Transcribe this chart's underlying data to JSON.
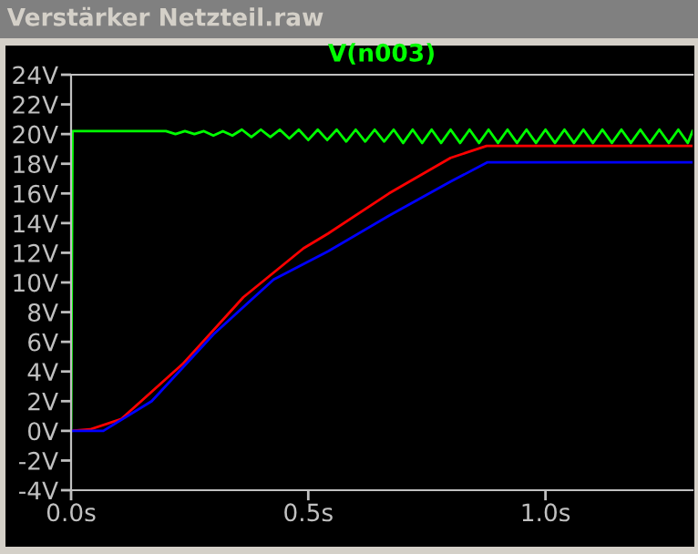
{
  "chart_data": {
    "type": "line",
    "title": "Verstärker Netzteil.raw",
    "xlim": [
      0,
      1.31
    ],
    "ylim": [
      -4,
      24
    ],
    "xticks": [
      {
        "value": 0,
        "label": "0.0s"
      },
      {
        "value": 0.5,
        "label": "0.5s"
      },
      {
        "value": 1.0,
        "label": "1.0s"
      }
    ],
    "yticks": [
      {
        "value": -4,
        "label": "-4V"
      },
      {
        "value": -2,
        "label": "-2V"
      },
      {
        "value": 0,
        "label": "0V"
      },
      {
        "value": 2,
        "label": "2V"
      },
      {
        "value": 4,
        "label": "4V"
      },
      {
        "value": 6,
        "label": "6V"
      },
      {
        "value": 8,
        "label": "8V"
      },
      {
        "value": 10,
        "label": "10V"
      },
      {
        "value": 12,
        "label": "12V"
      },
      {
        "value": 14,
        "label": "14V"
      },
      {
        "value": 16,
        "label": "16V"
      },
      {
        "value": 18,
        "label": "18V"
      },
      {
        "value": 20,
        "label": "20V"
      },
      {
        "value": 22,
        "label": "22V"
      },
      {
        "value": 24,
        "label": "24V"
      }
    ],
    "legend": "top",
    "grid": false,
    "series": [
      {
        "name": "V(n003)",
        "color": "#00ff00",
        "x": [
          0,
          0.003,
          0.2,
          0.22,
          0.24,
          0.26,
          0.28,
          0.3,
          0.32,
          0.34,
          0.36,
          0.38,
          0.4,
          0.42,
          0.44,
          0.46,
          0.48,
          0.5,
          0.52,
          0.54,
          0.56,
          0.58,
          0.6,
          0.62,
          0.64,
          0.66,
          0.68,
          0.7,
          0.72,
          0.74,
          0.76,
          0.78,
          0.8,
          0.82,
          0.84,
          0.86,
          0.88,
          0.9,
          0.92,
          0.94,
          0.96,
          0.98,
          1.0,
          1.02,
          1.04,
          1.06,
          1.08,
          1.1,
          1.12,
          1.14,
          1.16,
          1.18,
          1.2,
          1.22,
          1.24,
          1.26,
          1.28,
          1.3,
          1.31
        ],
        "values": [
          0,
          20.2,
          20.2,
          20.0,
          20.2,
          20.0,
          20.2,
          19.9,
          20.2,
          19.9,
          20.3,
          19.8,
          20.3,
          19.8,
          20.3,
          19.7,
          20.3,
          19.6,
          20.3,
          19.6,
          20.3,
          19.5,
          20.3,
          19.5,
          20.3,
          19.5,
          20.3,
          19.4,
          20.3,
          19.4,
          20.3,
          19.4,
          20.3,
          19.4,
          20.3,
          19.4,
          20.3,
          19.4,
          20.3,
          19.4,
          20.3,
          19.4,
          20.3,
          19.4,
          20.3,
          19.4,
          20.3,
          19.4,
          20.3,
          19.4,
          20.3,
          19.4,
          20.3,
          19.4,
          20.3,
          19.4,
          20.3,
          19.4,
          20.2
        ]
      },
      {
        "color": "#ff0000",
        "x": [
          0,
          0.04,
          0.106,
          0.235,
          0.363,
          0.49,
          0.542,
          0.67,
          0.8,
          0.876,
          1.31
        ],
        "values": [
          0,
          0.1,
          0.8,
          4.5,
          9.0,
          12.3,
          13.3,
          16.0,
          18.4,
          19.2,
          19.2
        ]
      },
      {
        "color": "#0000ff",
        "x": [
          0,
          0.068,
          0.17,
          0.3,
          0.427,
          0.542,
          0.67,
          0.8,
          0.878,
          1.31
        ],
        "values": [
          0,
          0,
          2.0,
          6.5,
          10.2,
          12.1,
          14.5,
          16.8,
          18.1,
          18.1
        ]
      }
    ]
  }
}
